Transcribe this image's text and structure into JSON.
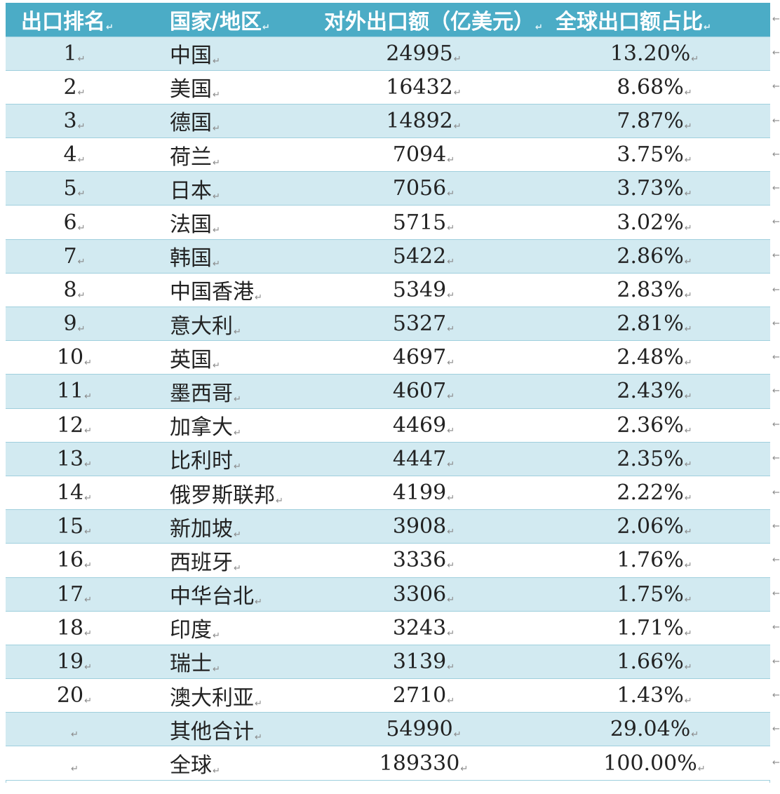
{
  "table": {
    "headers": [
      "出口排名",
      "国家/地区",
      "对外出口额（亿美元）",
      "全球出口额占比"
    ],
    "rows": [
      {
        "rank": "1",
        "country": "中国",
        "exports": "24995",
        "share": "13.20%"
      },
      {
        "rank": "2",
        "country": "美国",
        "exports": "16432",
        "share": "8.68%"
      },
      {
        "rank": "3",
        "country": "德国",
        "exports": "14892",
        "share": "7.87%"
      },
      {
        "rank": "4",
        "country": "荷兰",
        "exports": "7094",
        "share": "3.75%"
      },
      {
        "rank": "5",
        "country": "日本",
        "exports": "7056",
        "share": "3.73%"
      },
      {
        "rank": "6",
        "country": "法国",
        "exports": "5715",
        "share": "3.02%"
      },
      {
        "rank": "7",
        "country": "韩国",
        "exports": "5422",
        "share": "2.86%"
      },
      {
        "rank": "8",
        "country": "中国香港",
        "exports": "5349",
        "share": "2.83%"
      },
      {
        "rank": "9",
        "country": "意大利",
        "exports": "5327",
        "share": "2.81%"
      },
      {
        "rank": "10",
        "country": "英国",
        "exports": "4697",
        "share": "2.48%"
      },
      {
        "rank": "11",
        "country": "墨西哥",
        "exports": "4607",
        "share": "2.43%"
      },
      {
        "rank": "12",
        "country": "加拿大",
        "exports": "4469",
        "share": "2.36%"
      },
      {
        "rank": "13",
        "country": "比利时",
        "exports": "4447",
        "share": "2.35%"
      },
      {
        "rank": "14",
        "country": "俄罗斯联邦",
        "exports": "4199",
        "share": "2.22%"
      },
      {
        "rank": "15",
        "country": "新加坡",
        "exports": "3908",
        "share": "2.06%"
      },
      {
        "rank": "16",
        "country": "西班牙",
        "exports": "3336",
        "share": "1.76%"
      },
      {
        "rank": "17",
        "country": "中华台北",
        "exports": "3306",
        "share": "1.75%"
      },
      {
        "rank": "18",
        "country": "印度",
        "exports": "3243",
        "share": "1.71%"
      },
      {
        "rank": "19",
        "country": "瑞士",
        "exports": "3139",
        "share": "1.66%"
      },
      {
        "rank": "20",
        "country": "澳大利亚",
        "exports": "2710",
        "share": "1.43%"
      },
      {
        "rank": "",
        "country": "其他合计",
        "exports": "54990",
        "share": "29.04%"
      },
      {
        "rank": "",
        "country": "全球",
        "exports": "189330",
        "share": "100.00%"
      }
    ]
  },
  "marks": {
    "cell_end_glyph": "↵",
    "row_end_glyph": "←"
  },
  "colors": {
    "header_bg": "#4bacc6",
    "header_text": "#ffffff",
    "band_row_bg": "#d2eaf1",
    "plain_row_bg": "#ffffff",
    "grid_line": "#9fcfdd"
  }
}
